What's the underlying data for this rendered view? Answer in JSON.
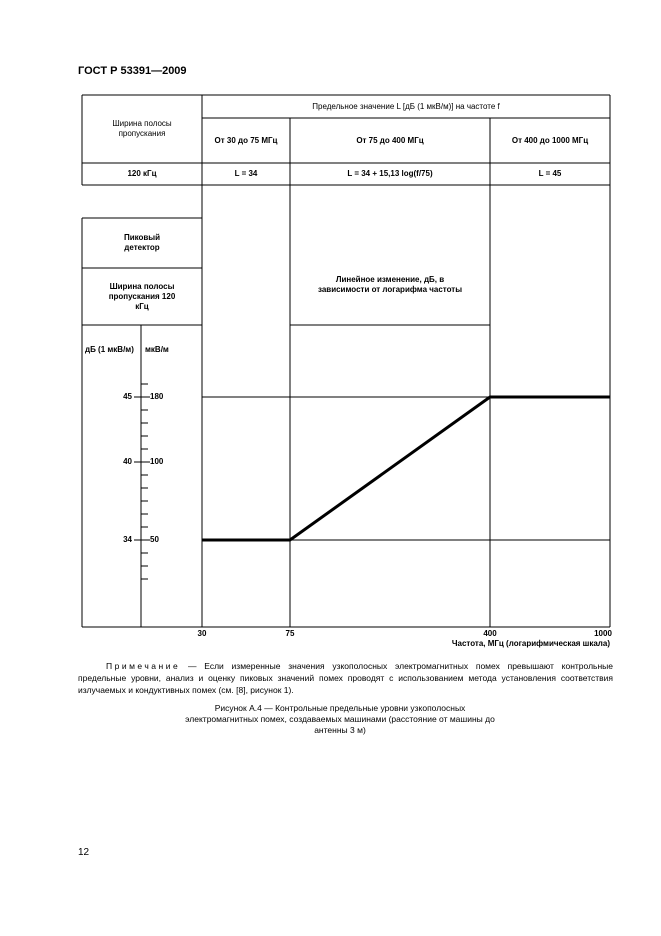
{
  "header": {
    "title": "ГОСТ Р 53391—2009"
  },
  "table": {
    "corner": "Ширина полосы пропускания",
    "span_header": "Предельное значение L [дБ (1 мкВ/м)] на частоте f",
    "columns": [
      "От 30 до 75 МГц",
      "От 75 до 400 МГц",
      "От 400 до 1000 МГц"
    ],
    "row": [
      "120 кГц",
      "L = 34",
      "L = 34 + 15,13 log(f/75)",
      "L = 45"
    ]
  },
  "figure": {
    "detector": "Пиковый детектор",
    "bandwidth": "Ширина полосы пропускания 120 кГц",
    "annotation": "Линейное изменение, дБ, в зависимости от логарифма частоты",
    "y_label_db": "дБ (1 мкВ/м)",
    "y_label_uv": "мкВ/м",
    "y_ticks_db": [
      "45",
      "40",
      "34"
    ],
    "y_ticks_uv": [
      "180",
      "100",
      "50"
    ],
    "x_ticks": [
      "30",
      "75",
      "400",
      "1000"
    ],
    "x_label": "Частота, МГц (логарифмическая шкала)"
  },
  "note": {
    "label": "Примечание",
    "text": "— Если измеренные значения узкополосных электромагнитных помех превышают контрольные предельные уровни, анализ и оценку пиковых значений помех проводят с использованием метода установления соответствия излучаемых и кондуктивных помех (см. [8], рисунок 1)."
  },
  "caption": "Рисунок А.4 — Контрольные предельные уровни узкополосных электромагнитных помех, создаваемых машинами (расстояние от машины до антенны 3 м)",
  "page_number": "12"
}
